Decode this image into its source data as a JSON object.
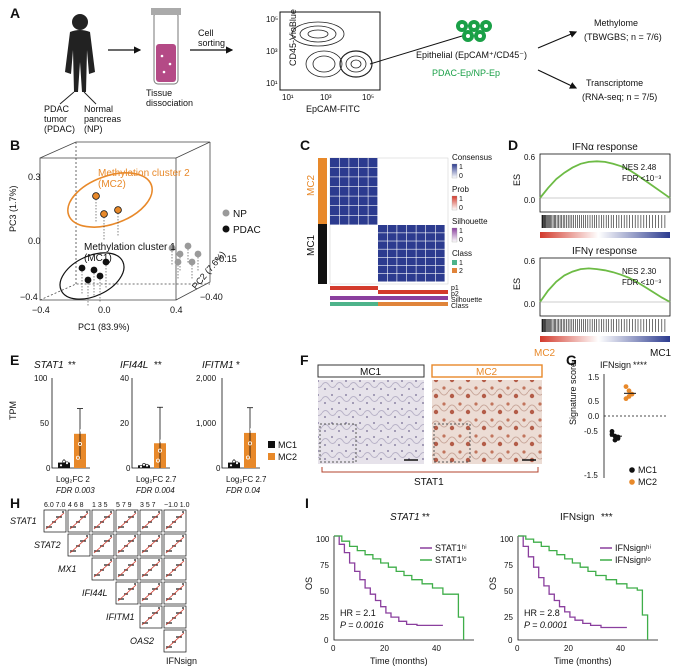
{
  "colors": {
    "orange": "#e8892a",
    "black": "#111111",
    "gray": "#9a9a9a",
    "green": "#6dbb45",
    "purple": "#8a3f9e",
    "blue": "#2c3b8f",
    "red": "#d33a2c",
    "teal": "#4db38a"
  },
  "panel_labels": [
    "A",
    "B",
    "C",
    "D",
    "E",
    "F",
    "G",
    "H",
    "I"
  ],
  "panelA": {
    "tumor": "PDAC\ntumor\n(PDAC)",
    "normal": "Normal\npancreas\n(NP)",
    "dissociation": "Tissue\ndissociation",
    "sorting": "Cell\nsorting",
    "flow_y": "CD45-VioBlue",
    "flow_x": "EpCAM-FITC",
    "epithelial": "Epithelial (EpCAM⁺/CD45⁻)",
    "groups": "PDAC-Ep/NP-Ep",
    "out1_title": "Methylome",
    "out1_sub": "(TBWGBS; n = 7/6)",
    "out2_title": "Transcriptome",
    "out2_sub": "(RNA-seq; n = 7/5)",
    "ticks_y": [
      "10⁵",
      "10³",
      "10¹"
    ],
    "ticks_x": [
      "10¹",
      "10³",
      "10⁵"
    ]
  },
  "panelB": {
    "mc2": "Methylation cluster 2\n(MC2)",
    "mc1": "Methylation cluster 1\n(MC1)",
    "legend": [
      "NP",
      "PDAC"
    ],
    "xlabel": "PC1 (83.9%)",
    "ylabel": "PC3 (1.7%)",
    "zlabel": "PC2 (7.6%)",
    "xticks": [
      "−0.4",
      "0.0",
      "0.4"
    ],
    "yticks": [
      "0.3",
      "0.0",
      "−0.4"
    ],
    "zticks": [
      "−0.15",
      "−0.40"
    ]
  },
  "panelC": {
    "mc2": "MC2",
    "mc1": "MC1",
    "legend": [
      "Consensus",
      "Prob",
      "Silhouette",
      "Class"
    ],
    "prob_ticks": [
      "1",
      "0"
    ],
    "cons_ticks": [
      "1",
      "0"
    ],
    "sil_ticks": [
      "1",
      "0"
    ],
    "class_items": [
      "1",
      "2"
    ],
    "row_labels": [
      "p1",
      "p2",
      "Silhouette",
      "Class"
    ]
  },
  "panelD": {
    "plots": [
      {
        "title": "IFNα response",
        "nes": "NES  2.48",
        "fdr": "FDR <10⁻³",
        "ticks": [
          "0.6",
          "0.0"
        ],
        "ylabel": "ES",
        "es": [
          0.0,
          0.16,
          0.3,
          0.4,
          0.48,
          0.54,
          0.57,
          0.58,
          0.57,
          0.54,
          0.5,
          0.44,
          0.36,
          0.27,
          0.18,
          0.09,
          0.0
        ]
      },
      {
        "title": "IFNγ response",
        "nes": "NES  2.30",
        "fdr": "FDR <10⁻³",
        "ticks": [
          "0.6",
          "0.0"
        ],
        "ylabel": "ES",
        "es": [
          0.0,
          0.18,
          0.32,
          0.42,
          0.48,
          0.52,
          0.53,
          0.52,
          0.5,
          0.47,
          0.43,
          0.38,
          0.31,
          0.23,
          0.15,
          0.07,
          0.0
        ]
      }
    ],
    "left": "MC2",
    "right": "MC1"
  },
  "panelE": {
    "ylabel": "TPM",
    "legend": [
      "MC1",
      "MC2"
    ],
    "genes": [
      {
        "name": "STAT1",
        "sig": "**",
        "yticks": [
          "100",
          "50",
          "0"
        ],
        "ymax": 100,
        "mc1": 6,
        "mc1_err": 4,
        "mc2": 38,
        "mc2_err": 28,
        "lfc": "Log₂FC 2",
        "fdr": "FDR 0.003"
      },
      {
        "name": "IFI44L",
        "sig": "**",
        "yticks": [
          "40",
          "20",
          "0"
        ],
        "ymax": 40,
        "mc1": 1.2,
        "mc1_err": 1,
        "mc2": 11,
        "mc2_err": 16,
        "lfc": "Log₂FC 2.7",
        "fdr": "FDR 0.004"
      },
      {
        "name": "IFITM1",
        "sig": "*",
        "yticks": [
          "2,000",
          "1,000",
          "0"
        ],
        "ymax": 2000,
        "mc1": 120,
        "mc1_err": 80,
        "mc2": 780,
        "mc2_err": 560,
        "lfc": "Log₂FC 2.7",
        "fdr": "FDR 0.04"
      }
    ]
  },
  "panelF": {
    "mc1": "MC1",
    "mc2": "MC2",
    "stain": "STAT1"
  },
  "panelG": {
    "title": "IFNsign",
    "sig": "****",
    "ylabel": "Signature score",
    "yticks": [
      "1.5",
      "0.5",
      "0.0",
      "-0.5",
      "-1.5"
    ],
    "legend": [
      "MC1",
      "MC2"
    ],
    "mc1": [
      -0.55,
      -0.72,
      -0.8,
      -0.66,
      -0.86,
      -0.75
    ],
    "mc2": [
      0.62,
      0.9,
      0.78,
      1.05,
      0.7
    ]
  },
  "panelH": {
    "labels": [
      "STAT1",
      "STAT2",
      "MX1",
      "IFI44L",
      "IFITM1",
      "OAS2",
      "IFNsign"
    ],
    "top_ticks": [
      "6.0 7.0",
      "4  6  8",
      "1  3  5",
      "5  7  9",
      "3  5  7",
      "−1.0 1.0"
    ],
    "right_ticks": [
      "6.0 7.0",
      "5  7  9",
      "4  6  8",
      "1  3  5",
      "3  5  7",
      "3  5  7"
    ]
  },
  "panelI": {
    "plots": [
      {
        "title": "STAT1",
        "sig": "**",
        "hi": "STAT1ʰⁱ",
        "lo": "STAT1ˡᵒ",
        "hr": "HR = 2.1",
        "p": "P = 0.0016",
        "hi_t": [
          0,
          2,
          4,
          6,
          8,
          10,
          12,
          14,
          16,
          18,
          20,
          22,
          25,
          28,
          32,
          36,
          42
        ],
        "hi_s": [
          100,
          92,
          84,
          74,
          66,
          58,
          50,
          44,
          38,
          32,
          26,
          22,
          18,
          15,
          14,
          14,
          14
        ],
        "lo_t": [
          0,
          3,
          6,
          9,
          12,
          15,
          18,
          21,
          24,
          27,
          30,
          34,
          38,
          42,
          46,
          48,
          50
        ],
        "lo_s": [
          100,
          95,
          90,
          86,
          82,
          78,
          74,
          70,
          66,
          62,
          58,
          54,
          50,
          44,
          44,
          22,
          0
        ]
      },
      {
        "title": "IFNsign",
        "sig": "***",
        "hi": "IFNsignʰⁱ",
        "lo": "IFNsignˡᵒ",
        "hr": "HR = 2.8",
        "p": "P = 0.0001",
        "hi_t": [
          0,
          2,
          4,
          6,
          8,
          10,
          12,
          14,
          16,
          18,
          20,
          22,
          25,
          28,
          32,
          36,
          42
        ],
        "hi_s": [
          100,
          90,
          80,
          70,
          60,
          52,
          44,
          38,
          32,
          27,
          22,
          19,
          16,
          14,
          12,
          12,
          12
        ],
        "lo_t": [
          0,
          3,
          6,
          9,
          12,
          15,
          18,
          21,
          24,
          27,
          30,
          34,
          38,
          42,
          46,
          48,
          50
        ],
        "lo_s": [
          100,
          97,
          94,
          90,
          86,
          82,
          78,
          74,
          70,
          66,
          62,
          58,
          54,
          50,
          48,
          24,
          0
        ]
      }
    ],
    "ylabel": "OS",
    "xlabel": "Time (months)",
    "xticks": [
      "0",
      "20",
      "40"
    ],
    "yticks": [
      "100",
      "75",
      "50",
      "25",
      "0"
    ]
  }
}
